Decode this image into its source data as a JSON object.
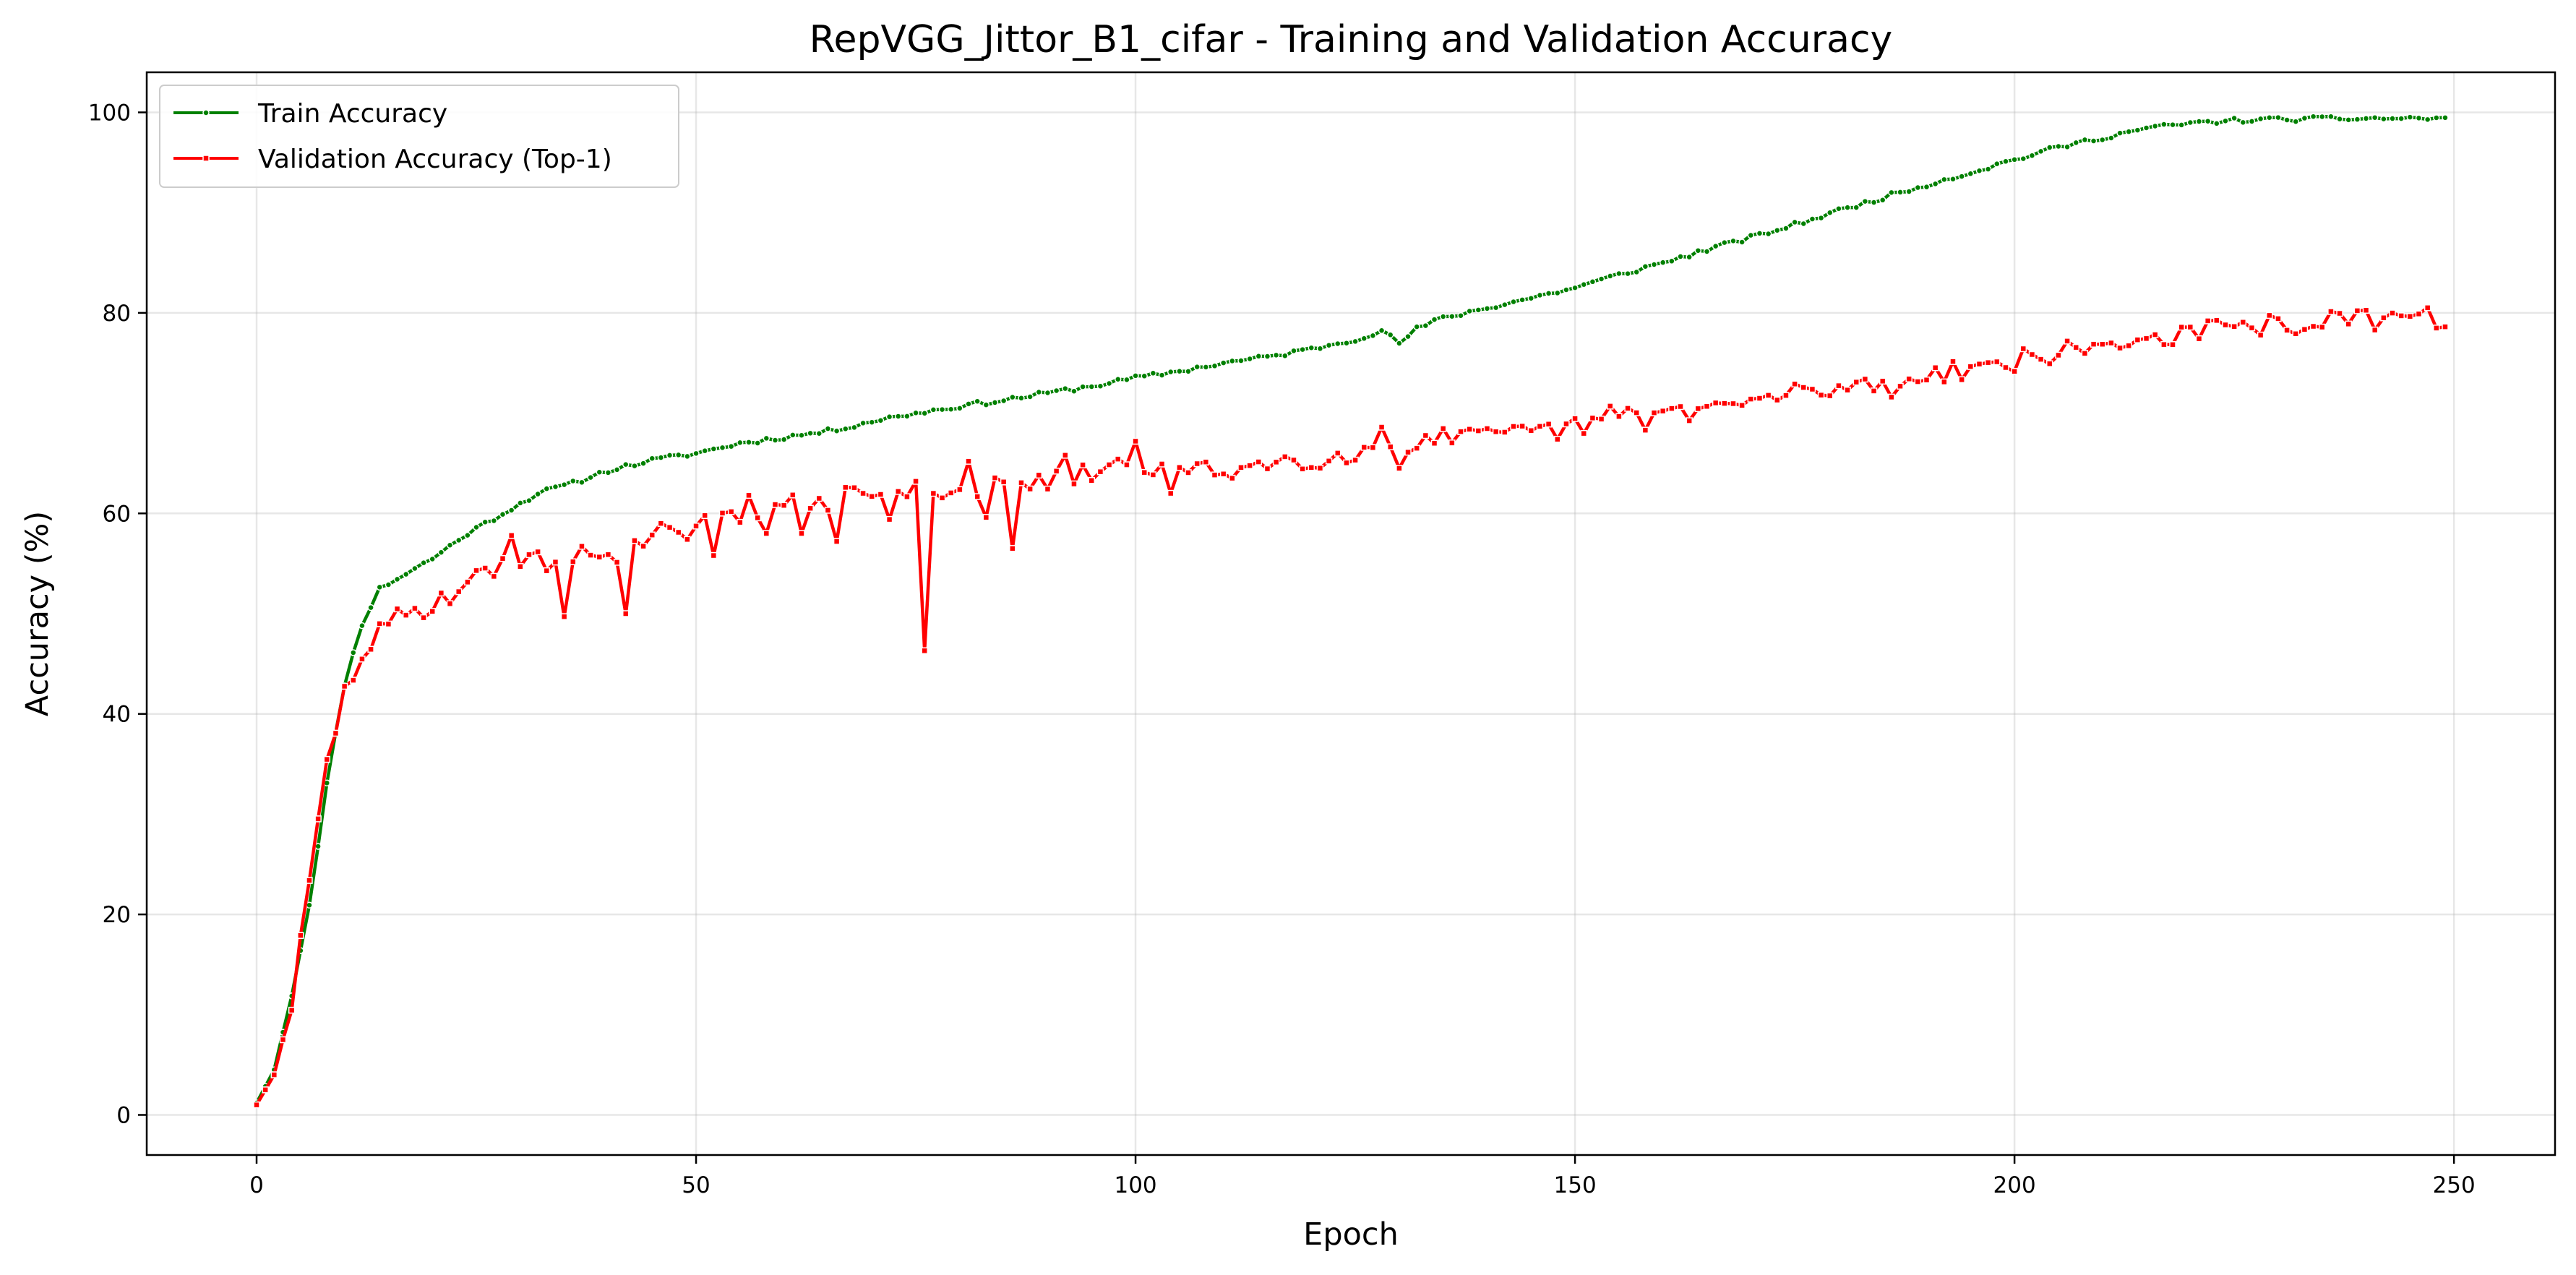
{
  "chart_data": {
    "type": "line",
    "title": "RepVGG_Jittor_B1_cifar - Training and Validation Accuracy",
    "xlabel": "Epoch",
    "ylabel": "Accuracy (%)",
    "xlim": [
      -12.5,
      261.5
    ],
    "ylim": [
      -4,
      104
    ],
    "xticks": [
      0,
      50,
      100,
      150,
      200,
      250
    ],
    "yticks": [
      0,
      20,
      40,
      60,
      80,
      100
    ],
    "grid": true,
    "legend_position": "top-left",
    "series": [
      {
        "name": "Train Accuracy",
        "color": "#008000",
        "marker": "circle",
        "knots": [
          [
            0,
            1.2
          ],
          [
            2,
            4.5
          ],
          [
            4,
            12
          ],
          [
            6,
            21
          ],
          [
            8,
            33
          ],
          [
            10,
            43
          ],
          [
            12,
            49
          ],
          [
            14,
            52.5
          ],
          [
            16,
            53.5
          ],
          [
            18,
            54.5
          ],
          [
            20,
            55.5
          ],
          [
            24,
            58
          ],
          [
            28,
            60
          ],
          [
            32,
            62
          ],
          [
            36,
            63
          ],
          [
            40,
            64.3
          ],
          [
            45,
            65.3
          ],
          [
            50,
            66
          ],
          [
            55,
            67
          ],
          [
            60,
            67.6
          ],
          [
            65,
            68.2
          ],
          [
            70,
            69.2
          ],
          [
            75,
            70
          ],
          [
            80,
            70.7
          ],
          [
            85,
            71.3
          ],
          [
            90,
            72
          ],
          [
            95,
            72.7
          ],
          [
            100,
            73.5
          ],
          [
            105,
            74.2
          ],
          [
            110,
            75
          ],
          [
            115,
            75.6
          ],
          [
            120,
            76.4
          ],
          [
            125,
            77.4
          ],
          [
            128,
            78.2
          ],
          [
            130,
            77
          ],
          [
            132,
            78.4
          ],
          [
            135,
            79.5
          ],
          [
            140,
            80.5
          ],
          [
            145,
            81.5
          ],
          [
            150,
            82.5
          ],
          [
            155,
            83.8
          ],
          [
            160,
            85
          ],
          [
            165,
            86.3
          ],
          [
            170,
            87.5
          ],
          [
            175,
            88.8
          ],
          [
            180,
            90.2
          ],
          [
            185,
            91.5
          ],
          [
            190,
            92.8
          ],
          [
            195,
            94
          ],
          [
            200,
            95.3
          ],
          [
            205,
            96.5
          ],
          [
            210,
            97.5
          ],
          [
            215,
            98.4
          ],
          [
            220,
            98.9
          ],
          [
            225,
            99.2
          ],
          [
            230,
            99.3
          ],
          [
            240,
            99.4
          ],
          [
            249,
            99.4
          ]
        ],
        "noise": 0.25,
        "seed": 11
      },
      {
        "name": "Validation Accuracy (Top-1)",
        "color": "#ff0000",
        "marker": "square",
        "knots": [
          [
            0,
            1
          ],
          [
            2,
            4
          ],
          [
            4,
            11
          ],
          [
            6,
            23
          ],
          [
            8,
            35
          ],
          [
            10,
            42
          ],
          [
            12,
            46
          ],
          [
            14,
            48
          ],
          [
            16,
            49.5
          ],
          [
            20,
            51
          ],
          [
            25,
            53.5
          ],
          [
            30,
            55
          ],
          [
            35,
            55.5
          ],
          [
            40,
            56
          ],
          [
            45,
            57
          ],
          [
            50,
            58.5
          ],
          [
            55,
            60
          ],
          [
            60,
            61
          ],
          [
            65,
            61.3
          ],
          [
            70,
            62
          ],
          [
            75,
            62
          ],
          [
            80,
            62.5
          ],
          [
            85,
            62.5
          ],
          [
            90,
            63
          ],
          [
            95,
            64
          ],
          [
            100,
            65
          ],
          [
            105,
            64
          ],
          [
            110,
            64.3
          ],
          [
            115,
            65
          ],
          [
            120,
            65.5
          ],
          [
            125,
            66
          ],
          [
            130,
            67
          ],
          [
            135,
            67.5
          ],
          [
            140,
            67.5
          ],
          [
            145,
            68
          ],
          [
            150,
            68.5
          ],
          [
            155,
            69.5
          ],
          [
            160,
            70
          ],
          [
            165,
            70.5
          ],
          [
            170,
            71
          ],
          [
            175,
            72
          ],
          [
            180,
            72.5
          ],
          [
            185,
            73
          ],
          [
            190,
            74
          ],
          [
            195,
            74.5
          ],
          [
            200,
            75.2
          ],
          [
            205,
            76
          ],
          [
            210,
            76.7
          ],
          [
            215,
            77.4
          ],
          [
            220,
            78
          ],
          [
            225,
            78.5
          ],
          [
            230,
            78.8
          ],
          [
            235,
            79.1
          ],
          [
            240,
            79.3
          ],
          [
            249,
            79.5
          ]
        ],
        "noise": 1.1,
        "seed": 29,
        "overrides": [
          [
            28,
            55.5
          ],
          [
            29,
            57.8
          ],
          [
            35,
            49.7
          ],
          [
            42,
            50
          ],
          [
            46,
            59
          ],
          [
            52,
            55.8
          ],
          [
            56,
            61.8
          ],
          [
            58,
            58
          ],
          [
            62,
            58
          ],
          [
            64,
            61.5
          ],
          [
            66,
            57.2
          ],
          [
            69,
            62
          ],
          [
            72,
            59.4
          ],
          [
            75,
            63.2
          ],
          [
            76,
            46.3
          ],
          [
            77,
            62
          ],
          [
            81,
            65.2
          ],
          [
            83,
            59.6
          ],
          [
            86,
            56.5
          ],
          [
            92,
            65.8
          ],
          [
            100,
            67.2
          ],
          [
            104,
            62
          ],
          [
            128,
            68.6
          ],
          [
            130,
            64.5
          ],
          [
            154,
            70.7
          ],
          [
            158,
            68.3
          ],
          [
            178,
            71.8
          ],
          [
            186,
            71.6
          ]
        ]
      }
    ]
  }
}
